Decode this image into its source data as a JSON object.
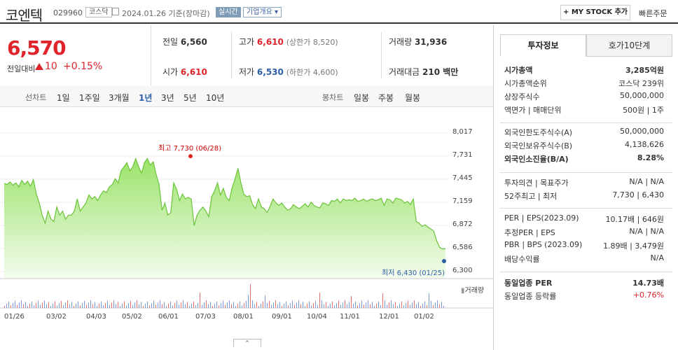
{
  "header": {
    "name": "코엔텍",
    "code": "029960",
    "market": "코스닥",
    "basis": "2024.01.26 기준(장마감)",
    "live": "실시간",
    "company_info": "기업개요 ▾",
    "mystock": "+ MY STOCK 추가",
    "quick_order": "빠른주문"
  },
  "price": {
    "current": "6,570",
    "change_label": "전일대비",
    "change": "10",
    "change_pct": "+0.15%"
  },
  "stats": {
    "prev_label": "전일",
    "prev": "6,560",
    "high_label": "고가",
    "high": "6,610",
    "upper_label": "(상한가 8,520)",
    "volume_label": "거래량",
    "volume": "31,936",
    "open_label": "시가",
    "open": "6,610",
    "low_label": "저가",
    "low": "6,530",
    "lower_label": "(하한가 4,600)",
    "amount_label": "거래대금",
    "amount": "210 백만"
  },
  "periods": {
    "line_label": "선차트",
    "tabs": [
      "1일",
      "1주일",
      "3개월",
      "1년",
      "3년",
      "5년",
      "10년"
    ],
    "active": "1년",
    "candle_label": "봉차트",
    "candle_tabs": [
      "일봉",
      "주봉",
      "월봉"
    ]
  },
  "chart_data": {
    "type": "area",
    "yticks": [
      "8,017",
      "7,731",
      "7,445",
      "7,159",
      "6,872",
      "6,586",
      "6,300"
    ],
    "ylim": [
      6300,
      8017
    ],
    "xticks": [
      "01/26",
      "03/02",
      "04/03",
      "05/02",
      "06/01",
      "07/03",
      "08/01",
      "09/01",
      "10/04",
      "11/01",
      "12/01",
      "01/02"
    ],
    "high_annotation": "최고 7,730 (06/28)",
    "low_annotation": "최저 6,430 (01/25)",
    "volume_label": "거래량",
    "series": [
      {
        "values": [
          7390,
          7380,
          7410,
          7370,
          7400,
          7350,
          7430,
          7380,
          7420,
          7360,
          7440,
          7260,
          7150,
          7000,
          6900,
          7050,
          6950,
          6920,
          7100,
          7000,
          7050,
          6950,
          7000,
          7000,
          7050,
          7200,
          7050,
          7100,
          7150,
          7250,
          7200,
          7230,
          7180,
          7250,
          7300,
          7280,
          7350,
          7380,
          7450,
          7400,
          7550,
          7600,
          7650,
          7550,
          7600,
          7700,
          7600,
          7520,
          7650,
          7700,
          7620,
          7660,
          7500,
          7380,
          7060,
          7150,
          7000,
          7030,
          7400,
          7320,
          7180,
          7260,
          7200,
          7220,
          7200,
          6870,
          7000,
          7060,
          7100,
          7050,
          6980,
          7230,
          7300,
          7400,
          7250,
          7330,
          7220,
          7180,
          7340,
          7450,
          7580,
          7400,
          7260,
          7230,
          7240,
          7130,
          7080,
          7200,
          7100,
          7080,
          7030,
          7110,
          7200,
          7150,
          7120,
          7150,
          7100,
          7060,
          7080,
          7130,
          7100,
          7080,
          7110,
          7140,
          7100,
          7160,
          7120,
          7100,
          7090,
          7150,
          7140,
          7120,
          7180,
          7170,
          7200,
          7150,
          7200,
          7180,
          7190,
          7180,
          7210,
          7170,
          7180,
          7200,
          7170,
          7190,
          7200,
          7180,
          7190,
          7210,
          7120,
          7200,
          7190,
          7150,
          7210,
          7200,
          7190,
          7150,
          7170,
          7130,
          7200,
          6920,
          6900,
          6860,
          6880,
          6850,
          6830,
          6800,
          6680,
          6600,
          6580,
          6586
        ]
      }
    ]
  },
  "panel": {
    "tab_active": "투자정보",
    "tab_other": "호가10단계",
    "rows1": [
      [
        "시가총액",
        "3,285억원"
      ],
      [
        "시가총액순위",
        "코스닥 239위"
      ],
      [
        "상장주식수",
        "50,000,000"
      ],
      [
        "액면가 | 매매단위",
        "500원 | 1주"
      ]
    ],
    "rows2": [
      [
        "외국인한도주식수(A)",
        "50,000,000"
      ],
      [
        "외국인보유주식수(B)",
        "4,138,626"
      ],
      [
        "외국인소진율(B/A)",
        "8.28%"
      ]
    ],
    "rows3": [
      [
        "투자의견 | 목표주가",
        "N/A | N/A"
      ],
      [
        "52주최고 | 최저",
        "7,730 | 6,430"
      ]
    ],
    "rows4": [
      [
        "PER | EPS(2023.09)",
        "10.17배 | 646원"
      ],
      [
        "추정PER | EPS",
        "N/A | N/A"
      ],
      [
        "PBR | BPS (2023.09)",
        "1.89배 | 3,479원"
      ],
      [
        "배당수익률",
        "N/A"
      ]
    ],
    "rows5": [
      [
        "동일업종 PER",
        "14.73배"
      ],
      [
        "동일업종 등락률",
        "+0.76%"
      ]
    ]
  },
  "colors": {
    "up": "#e0242b",
    "down": "#2b5fa8",
    "area": "#7dd147"
  }
}
